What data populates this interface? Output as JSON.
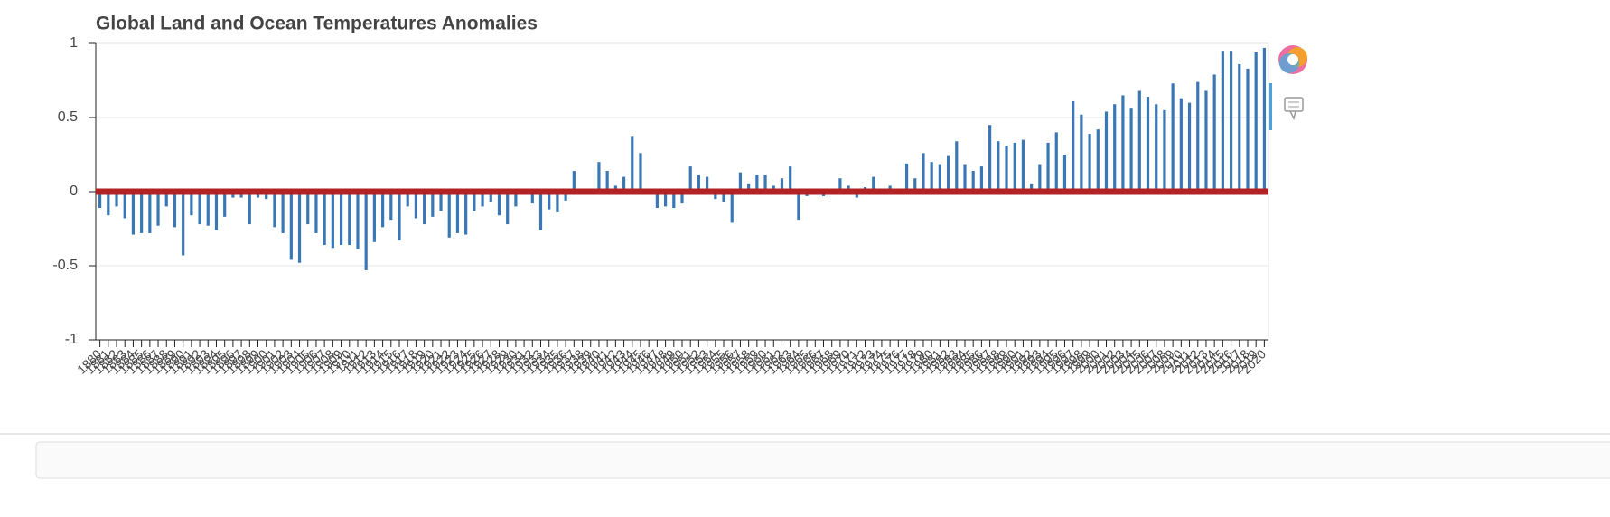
{
  "chart_data": {
    "type": "bar",
    "title": "Global Land and Ocean Temperatures Anomalies",
    "categories": [
      "1880",
      "1881",
      "1882",
      "1883",
      "1884",
      "1885",
      "1886",
      "1887",
      "1888",
      "1889",
      "1890",
      "1891",
      "1892",
      "1893",
      "1894",
      "1895",
      "1896",
      "1897",
      "1898",
      "1899",
      "1900",
      "1901",
      "1902",
      "1903",
      "1904",
      "1905",
      "1906",
      "1907",
      "1908",
      "1909",
      "1910",
      "1911",
      "1912",
      "1913",
      "1914",
      "1915",
      "1916",
      "1917",
      "1918",
      "1919",
      "1920",
      "1921",
      "1922",
      "1923",
      "1924",
      "1925",
      "1926",
      "1927",
      "1928",
      "1929",
      "1930",
      "1931",
      "1932",
      "1933",
      "1934",
      "1935",
      "1936",
      "1937",
      "1938",
      "1939",
      "1940",
      "1941",
      "1942",
      "1943",
      "1944",
      "1945",
      "1946",
      "1947",
      "1948",
      "1949",
      "1950",
      "1951",
      "1952",
      "1953",
      "1954",
      "1955",
      "1956",
      "1957",
      "1958",
      "1959",
      "1960",
      "1961",
      "1962",
      "1963",
      "1964",
      "1965",
      "1966",
      "1967",
      "1968",
      "1969",
      "1970",
      "1971",
      "1972",
      "1973",
      "1974",
      "1975",
      "1976",
      "1977",
      "1978",
      "1979",
      "1980",
      "1981",
      "1982",
      "1983",
      "1984",
      "1985",
      "1986",
      "1987",
      "1988",
      "1989",
      "1990",
      "1991",
      "1992",
      "1993",
      "1994",
      "1995",
      "1996",
      "1997",
      "1998",
      "1999",
      "2000",
      "2001",
      "2002",
      "2003",
      "2004",
      "2005",
      "2006",
      "2007",
      "2008",
      "2009",
      "2010",
      "2011",
      "2012",
      "2013",
      "2014",
      "2015",
      "2016",
      "2017",
      "2018",
      "2019",
      "2020"
    ],
    "values": [
      -0.11,
      -0.16,
      -0.1,
      -0.18,
      -0.29,
      -0.28,
      -0.28,
      -0.23,
      -0.1,
      -0.24,
      -0.43,
      -0.16,
      -0.22,
      -0.23,
      -0.26,
      -0.17,
      -0.04,
      -0.04,
      -0.22,
      -0.04,
      -0.05,
      -0.24,
      -0.28,
      -0.46,
      -0.48,
      -0.22,
      -0.28,
      -0.36,
      -0.38,
      -0.36,
      -0.36,
      -0.39,
      -0.53,
      -0.34,
      -0.24,
      -0.19,
      -0.33,
      -0.1,
      -0.18,
      -0.22,
      -0.17,
      -0.13,
      -0.31,
      -0.28,
      -0.29,
      -0.13,
      -0.1,
      -0.07,
      -0.16,
      -0.22,
      -0.1,
      -0.01,
      -0.08,
      -0.26,
      -0.12,
      -0.14,
      -0.06,
      0.14,
      0.01,
      -0.01,
      0.2,
      0.14,
      0.04,
      0.1,
      0.37,
      0.26,
      -0.02,
      -0.11,
      -0.1,
      -0.11,
      -0.08,
      0.17,
      0.11,
      0.1,
      -0.05,
      -0.07,
      -0.21,
      0.13,
      0.05,
      0.11,
      0.11,
      0.04,
      0.09,
      0.17,
      -0.19,
      -0.03,
      0.02,
      -0.03,
      0.01,
      0.09,
      0.04,
      -0.04,
      0.03,
      0.1,
      0.01,
      0.04,
      -0.02,
      0.19,
      0.09,
      0.26,
      0.2,
      0.18,
      0.24,
      0.34,
      0.18,
      0.14,
      0.17,
      0.45,
      0.34,
      0.31,
      0.33,
      0.35,
      0.05,
      0.18,
      0.33,
      0.4,
      0.25,
      0.61,
      0.52,
      0.39,
      0.42,
      0.54,
      0.59,
      0.65,
      0.56,
      0.68,
      0.64,
      0.59,
      0.55,
      0.73,
      0.63,
      0.6,
      0.74,
      0.68,
      0.79,
      0.95,
      0.95,
      0.86,
      0.83,
      0.94,
      0.97
    ],
    "color": "#3a78b5",
    "ylim": [
      -1,
      1
    ],
    "yticks": [
      -1,
      -0.5,
      0,
      0.5,
      1
    ],
    "grid": true,
    "hline": 0,
    "hline_color": "#b22222"
  }
}
